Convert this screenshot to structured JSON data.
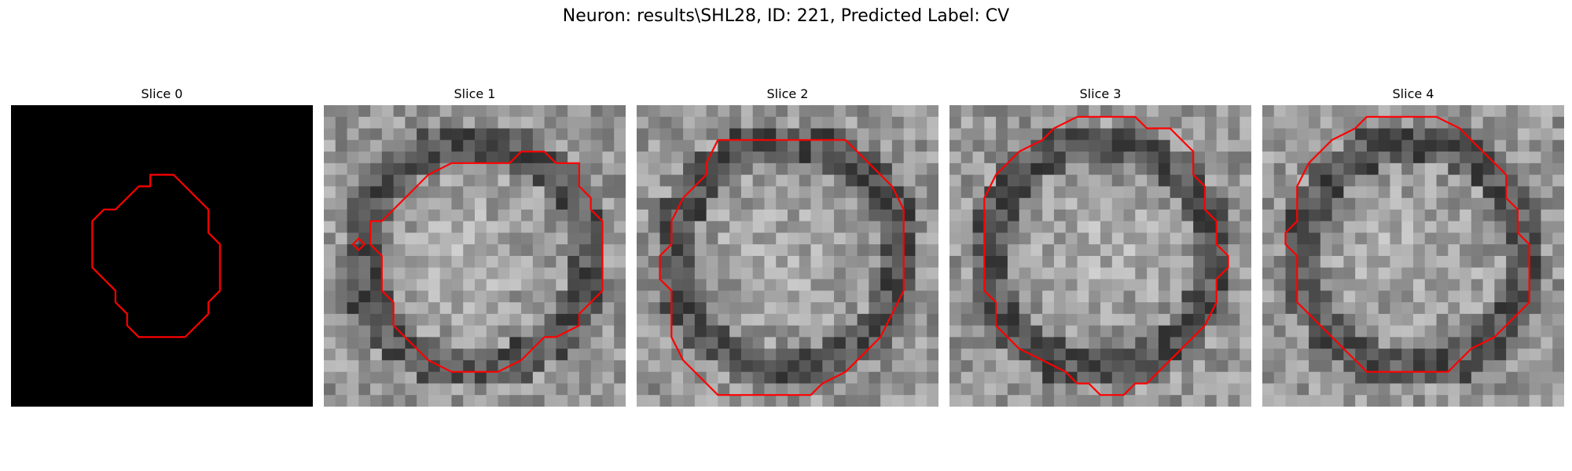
{
  "figure": {
    "title": "Neuron: results\\SHL28, ID: 221, Predicted Label: CV"
  },
  "panels": [
    {
      "title": "Slice 0",
      "blank": true,
      "seed": 1
    },
    {
      "title": "Slice 1",
      "blank": false,
      "seed": 11
    },
    {
      "title": "Slice 2",
      "blank": false,
      "seed": 23
    },
    {
      "title": "Slice 3",
      "blank": false,
      "seed": 37
    },
    {
      "title": "Slice 4",
      "blank": false,
      "seed": 51
    }
  ],
  "colors": {
    "contour": "#ff0000",
    "background_blank": "#000000"
  }
}
